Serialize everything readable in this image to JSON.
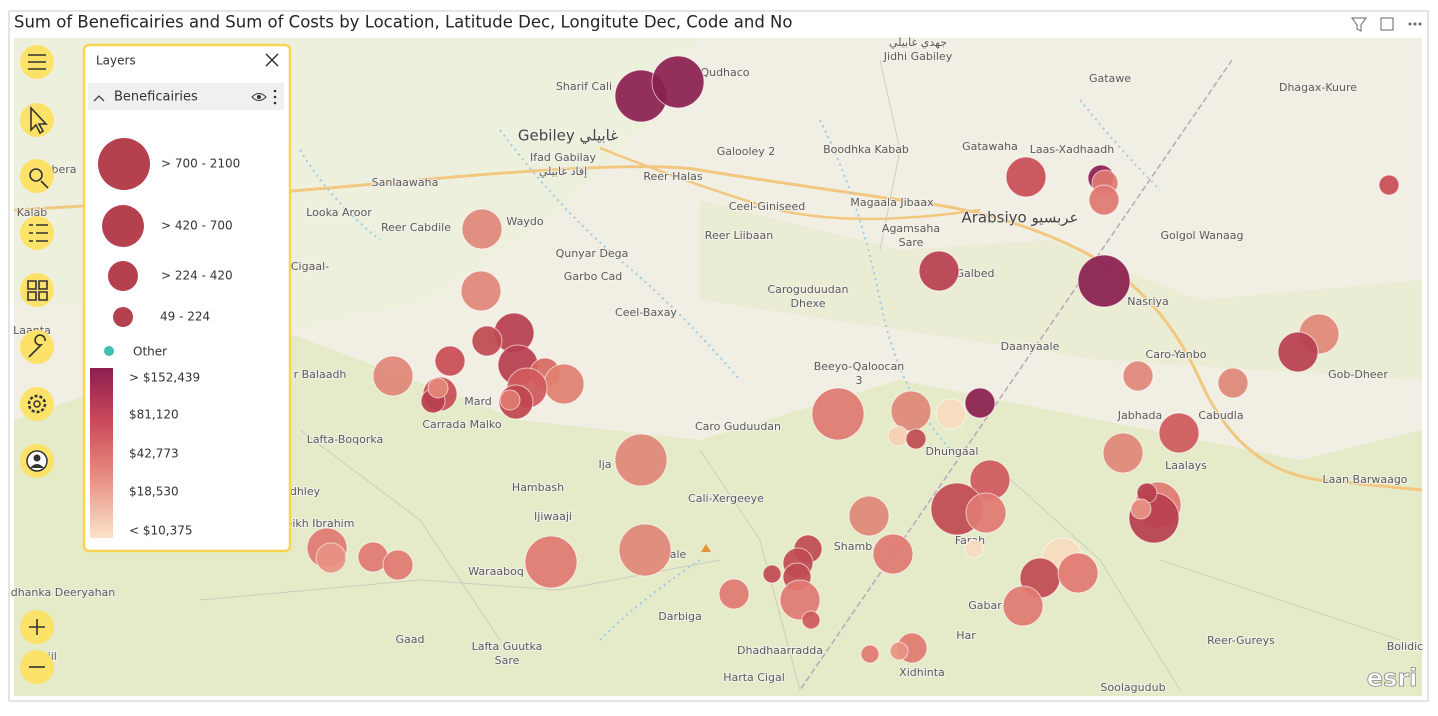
{
  "header": {
    "title": "Sum of Beneficairies and Sum of Costs by Location, Latitude Dec, Longitute Dec, Code and No"
  },
  "layers_panel": {
    "title": "Layers",
    "layer": "Beneficairies",
    "size_legend": [
      "> 700 - 2100",
      "> 420 - 700",
      "> 224 - 420",
      "49 - 224"
    ],
    "other": "Other",
    "color_legend": [
      "> $152,439",
      "$81,120",
      "$42,773",
      "$18,530",
      "< $10,375"
    ]
  },
  "map": {
    "labels": [
      "جهدي غابيلي",
      "Jidhi Gabiley",
      "Qudhaco",
      "Sharif Cali",
      "Gebiley غابيلي",
      "Ifad Gabilay",
      "إفاد غابيلي",
      "Galooley 2",
      "Boodhka Kabab",
      "Gatawaha",
      "Laas-Xadhaadh",
      "Gatawe",
      "Dhagax-Kuure",
      "Sanlaawaha",
      "Reer Halas",
      "Looka Aroor",
      "Reer Cabdile",
      "Waydo",
      "Ceel-Giniseed",
      "Magaala Jibaax",
      "Arabsiyo عربسيو",
      "Golgol Wanaag",
      "Reer Liibaan",
      "Agamsaha",
      "Sare",
      "Qunyar Dega",
      "Garbo Cad",
      "Galbed",
      "Caroguduudan",
      "Dhexe",
      "Nasriya",
      "Ceel-Baxay",
      "Daanyaale",
      "Caro-Yanbo",
      "Gob-Dheer",
      "Beeyo-Qaloocan",
      "3",
      "Jabhada",
      "Cabudla",
      "Laalays",
      "Laan Barwaago",
      "Carrada Malko",
      "Lafta-Boqorka",
      "Caro Guduudan",
      "Dhungaal",
      "Hambash",
      "Cali-Xergeeye",
      "Ijiwaaji",
      "Shamb",
      "Waraaboq",
      "Darbiga",
      "Gabar",
      "Gaad",
      "Lafta Guutka",
      "Sare",
      "Har",
      "Reer-Gureys",
      "Bolidic",
      "Dhadhaarradda",
      "Xidhinta",
      "Harta Cigal",
      "Soolagudub",
      "Kalab",
      "Laanta",
      "Cigaal-",
      "r Balaadh",
      "dhley",
      "eikh Ibrahim",
      "dhanka Deeryahan",
      "ibriil",
      "Mard",
      "Ija",
      "ale",
      "Farah",
      "bera"
    ],
    "attribution": "esri"
  }
}
